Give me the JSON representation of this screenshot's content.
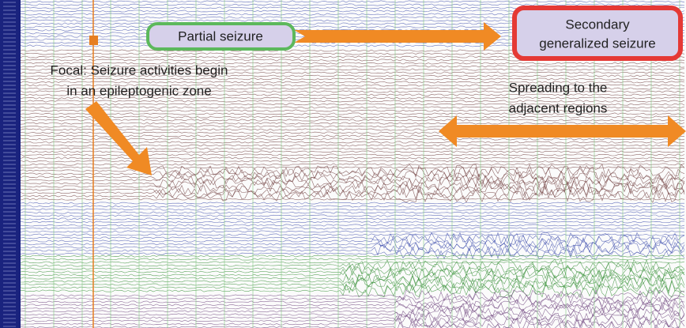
{
  "partial_label": "Partial seizure",
  "secondary_label": {
    "lines": [
      "Secondary",
      "generalized seizure"
    ]
  },
  "focal_label": {
    "lines": [
      "Focal: Seizure activities begin",
      "in an epileptogenic zone"
    ]
  },
  "spreading_label": {
    "lines": [
      "Spreading to the",
      "adjacent regions"
    ]
  }
}
